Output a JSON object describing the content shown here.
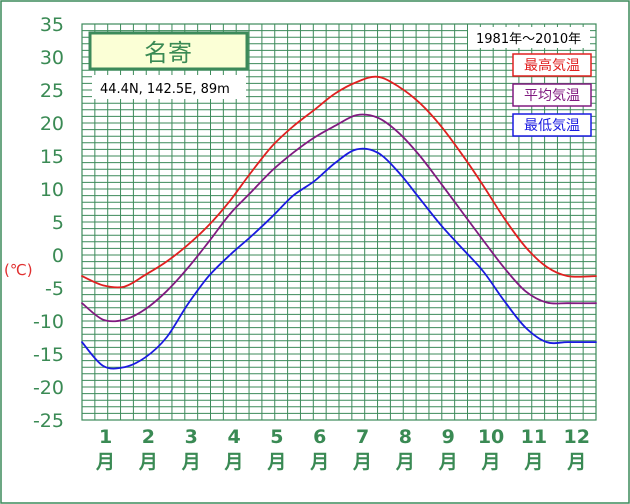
{
  "chart_data": {
    "type": "line",
    "title": "名寄",
    "location": "44.4N,  142.5E,  89m",
    "period": "1981年〜2010年",
    "ylabel": "(℃)",
    "ylim": [
      -25,
      35
    ],
    "yticks": [
      "35",
      "30",
      "25",
      "20",
      "15",
      "10",
      "5",
      "0",
      "-5",
      "-10",
      "-15",
      "-20",
      "-25"
    ],
    "months": [
      "1",
      "2",
      "3",
      "4",
      "5",
      "6",
      "7",
      "8",
      "9",
      "10",
      "11",
      "12"
    ],
    "month_suffix": "月",
    "x_days": [
      0,
      15,
      30,
      45,
      60,
      75,
      90,
      105,
      120,
      135,
      150,
      165,
      180,
      195,
      210,
      225,
      240,
      255,
      270,
      285,
      300,
      315,
      330,
      345,
      365
    ],
    "series": [
      {
        "name": "最高気温",
        "color": "#e02020",
        "values": [
          -3.2,
          -4.6,
          -4.8,
          -3.0,
          -1.0,
          1.5,
          4.5,
          8.2,
          12.5,
          16.5,
          19.5,
          22.0,
          24.5,
          26.2,
          27.0,
          25.5,
          23.0,
          19.5,
          15.2,
          10.5,
          5.5,
          1.2,
          -1.8,
          -3.2,
          -3.2
        ]
      },
      {
        "name": "平均気温",
        "color": "#801a80",
        "values": [
          -7.3,
          -9.8,
          -9.8,
          -8.2,
          -5.5,
          -2.0,
          2.0,
          6.2,
          9.5,
          12.8,
          15.5,
          17.8,
          19.6,
          21.2,
          20.8,
          18.5,
          15.0,
          10.8,
          6.5,
          2.2,
          -2.0,
          -5.5,
          -7.2,
          -7.3,
          -7.3
        ]
      },
      {
        "name": "最低気温",
        "color": "#1a1ae0",
        "values": [
          -13.2,
          -16.8,
          -17.0,
          -15.5,
          -12.5,
          -7.5,
          -3.2,
          0.0,
          2.8,
          5.8,
          9.0,
          11.2,
          14.0,
          16.0,
          15.5,
          12.5,
          8.5,
          4.5,
          1.0,
          -2.5,
          -7.0,
          -11.0,
          -13.2,
          -13.2,
          -13.2
        ]
      }
    ],
    "grid": true,
    "legend_position": "top-right"
  }
}
